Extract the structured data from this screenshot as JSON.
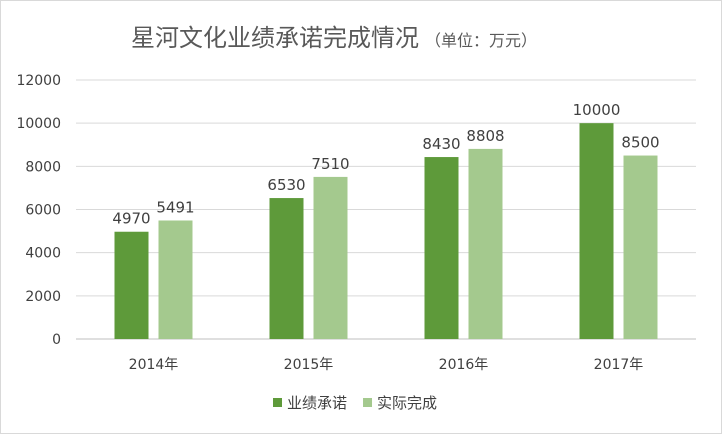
{
  "chart_data": {
    "type": "bar",
    "title": "星河文化业绩承诺完成情况",
    "subtitle": "（单位：万元）",
    "categories": [
      "2014年",
      "2015年",
      "2016年",
      "2017年"
    ],
    "series": [
      {
        "name": "业绩承诺",
        "color": "#5e9a3a",
        "values": [
          4970,
          6530,
          8430,
          10000
        ]
      },
      {
        "name": "实际完成",
        "color": "#a4c98e",
        "values": [
          5491,
          7510,
          8808,
          8500
        ]
      }
    ],
    "ylim": [
      0,
      12000
    ],
    "yticks": [
      0,
      2000,
      4000,
      6000,
      8000,
      10000,
      12000
    ],
    "grid": true,
    "legend": "bottom"
  }
}
